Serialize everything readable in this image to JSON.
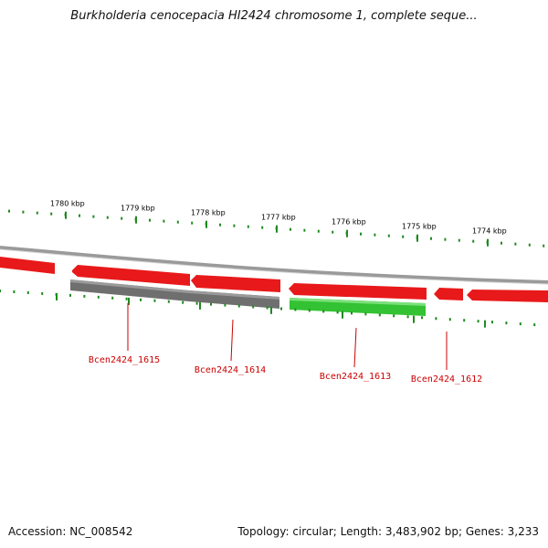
{
  "title": "Burkholderia cenocepacia HI2424 chromosome 1, complete seque...",
  "footer": {
    "accession": "Accession: NC_008542",
    "stats": "Topology: circular; Length: 3,483,902 bp; Genes: 3,233"
  },
  "colors": {
    "ruler_ticks": "#1f8a1f",
    "backbone": "#8a8a8a",
    "forward_gene": "#e8191a",
    "reverse_gene_gray": "#6f6f6f",
    "reverse_gene_green": "#33c233",
    "gene_label": "#cc0000",
    "tick_label": "#000000"
  },
  "ruler": {
    "tick_labels": [
      "1780 kbp",
      "1779 kbp",
      "1778 kbp",
      "1777 kbp",
      "1776 kbp",
      "1775 kbp",
      "1774 kbp"
    ]
  },
  "genes": [
    {
      "label": "Bcen2424_1615",
      "strand": "reverse",
      "color": "gray"
    },
    {
      "label": "Bcen2424_1614",
      "strand": "reverse",
      "color": "gray"
    },
    {
      "label": "Bcen2424_1613",
      "strand": "reverse",
      "color": "green"
    },
    {
      "label": "Bcen2424_1612",
      "strand": "reverse",
      "color": "red"
    }
  ]
}
